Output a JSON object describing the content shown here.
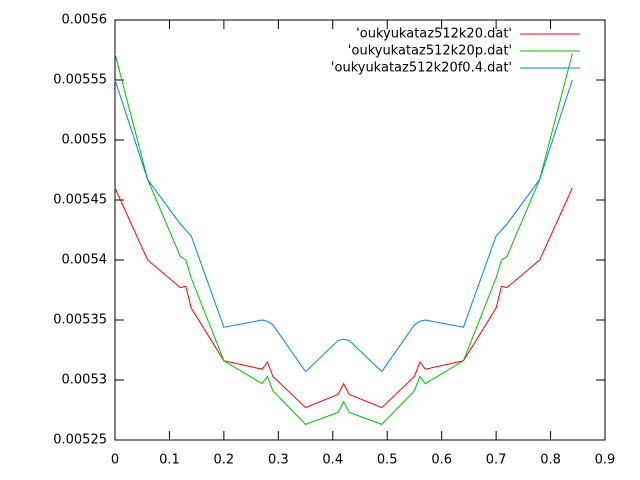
{
  "chart_data": {
    "type": "line",
    "x": [
      0,
      0.06,
      0.12,
      0.13,
      0.14,
      0.2,
      0.27,
      0.28,
      0.29,
      0.35,
      0.41,
      0.42,
      0.43,
      0.49,
      0.55,
      0.56,
      0.57,
      0.64,
      0.7,
      0.71,
      0.72,
      0.78,
      0.84
    ],
    "series": [
      {
        "name": "'oukyukataz512k20.dat'",
        "color": "#ff0000",
        "values": [
          0.00546,
          0.0054,
          0.005377,
          0.005378,
          0.00536,
          0.005316,
          0.005309,
          0.005315,
          0.005303,
          0.005277,
          0.005288,
          0.005297,
          0.005288,
          0.005277,
          0.005303,
          0.005315,
          0.005309,
          0.005316,
          0.00536,
          0.005378,
          0.005377,
          0.0054,
          0.00546
        ]
      },
      {
        "name": "'oukyukataz512k20p.dat'",
        "color": "#00c000",
        "values": [
          0.005572,
          0.005467,
          0.005403,
          0.0054,
          0.005385,
          0.005316,
          0.005297,
          0.005303,
          0.005291,
          0.005263,
          0.005273,
          0.005282,
          0.005273,
          0.005263,
          0.005291,
          0.005303,
          0.005297,
          0.005316,
          0.005385,
          0.0054,
          0.005403,
          0.005467,
          0.005572
        ]
      },
      {
        "name": "'oukyukataz512k20f0.4.dat'",
        "color": "#0080ff",
        "values": [
          0.00555,
          0.005467,
          0.00543,
          0.005425,
          0.00542,
          0.005344,
          0.00535,
          0.005349,
          0.005346,
          0.005307,
          0.005333,
          0.005334,
          0.005333,
          0.005307,
          0.005346,
          0.005349,
          0.00535,
          0.005344,
          0.00542,
          0.005425,
          0.00543,
          0.005467,
          0.00555
        ]
      }
    ],
    "xlim": [
      0,
      0.9
    ],
    "xticks": [
      0,
      0.1,
      0.2,
      0.3,
      0.4,
      0.5,
      0.6,
      0.7,
      0.8,
      0.9
    ],
    "ylim": [
      0.00525,
      0.0056
    ],
    "yticks": [
      0.00525,
      0.0053,
      0.00535,
      0.0054,
      0.00545,
      0.0055,
      0.00555,
      0.0056
    ],
    "legend": "top-right"
  }
}
